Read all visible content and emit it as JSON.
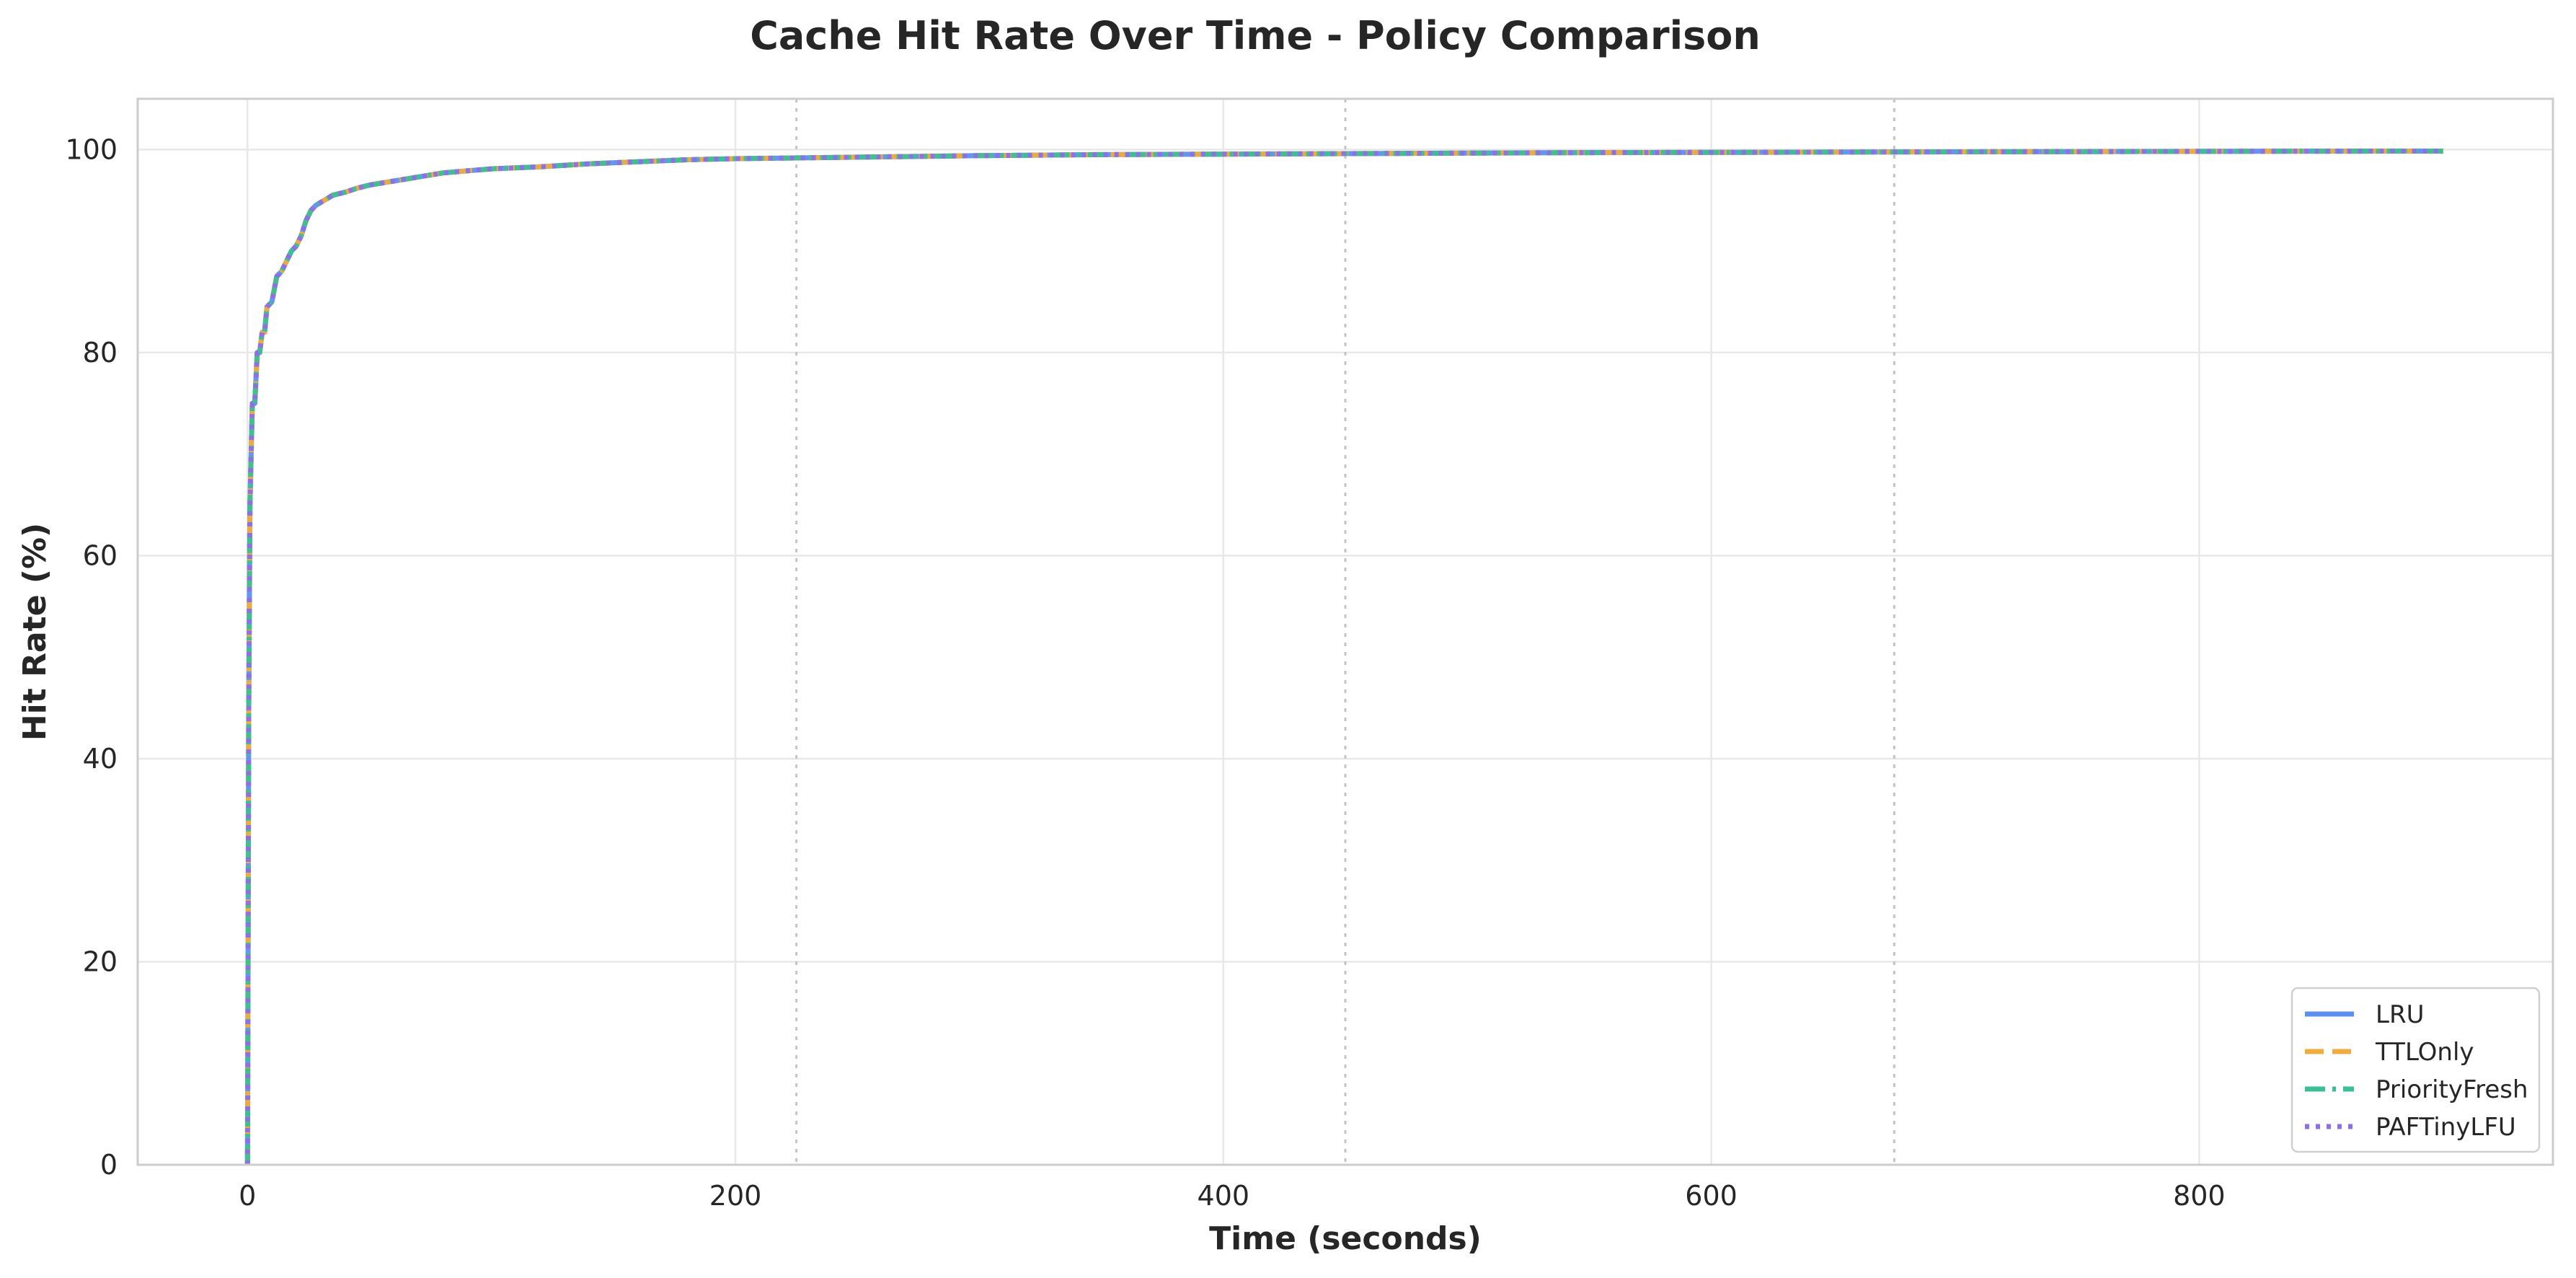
{
  "chart_data": {
    "type": "line",
    "title": "Cache Hit Rate Over Time - Policy Comparison",
    "xlabel": "Time (seconds)",
    "ylabel": "Hit Rate (%)",
    "xlim": [
      -45,
      945
    ],
    "ylim": [
      0,
      105
    ],
    "x_ticks": [
      0,
      200,
      400,
      600,
      800
    ],
    "y_ticks": [
      0,
      20,
      40,
      60,
      80,
      100
    ],
    "grid": true,
    "phase_markers_x": [
      225,
      450,
      675
    ],
    "legend_position": "lower right",
    "x": [
      0,
      0.5,
      1,
      2,
      3,
      4,
      5,
      6,
      7,
      8,
      10,
      12,
      14,
      16,
      18,
      20,
      22,
      24,
      26,
      28,
      30,
      35,
      40,
      45,
      50,
      60,
      70,
      80,
      90,
      100,
      120,
      140,
      160,
      180,
      200,
      250,
      300,
      350,
      400,
      450,
      500,
      550,
      600,
      650,
      700,
      750,
      800,
      850,
      900
    ],
    "series": [
      {
        "name": "LRU",
        "color": "#5B8FF0",
        "dash": "solid",
        "values": [
          0,
          45,
          65,
          75,
          75,
          80,
          80,
          82,
          82,
          84.5,
          85,
          87.5,
          88,
          89,
          90,
          90.5,
          91.5,
          93,
          94,
          94.5,
          94.8,
          95.5,
          95.8,
          96.2,
          96.5,
          96.9,
          97.3,
          97.7,
          97.9,
          98.1,
          98.3,
          98.6,
          98.8,
          99.0,
          99.1,
          99.25,
          99.4,
          99.5,
          99.55,
          99.6,
          99.65,
          99.7,
          99.72,
          99.75,
          99.78,
          99.8,
          99.82,
          99.84,
          99.85
        ]
      },
      {
        "name": "TTLOnly",
        "color": "#F0AC3C",
        "dash": "dashed",
        "values": [
          0,
          45,
          65,
          75,
          75,
          80,
          80,
          82,
          82,
          84.5,
          85,
          87.5,
          88,
          89,
          90,
          90.5,
          91.5,
          93,
          94,
          94.5,
          94.8,
          95.5,
          95.8,
          96.2,
          96.5,
          96.9,
          97.3,
          97.7,
          97.9,
          98.1,
          98.3,
          98.6,
          98.8,
          99.0,
          99.1,
          99.25,
          99.4,
          99.5,
          99.55,
          99.6,
          99.65,
          99.7,
          99.72,
          99.75,
          99.78,
          99.8,
          99.82,
          99.84,
          99.85
        ]
      },
      {
        "name": "PriorityFresh",
        "color": "#3CBF92",
        "dash": "dashdot",
        "values": [
          0,
          45,
          65,
          75,
          75,
          80,
          80,
          82,
          82,
          84.5,
          85,
          87.5,
          88,
          89,
          90,
          90.5,
          91.5,
          93,
          94,
          94.5,
          94.8,
          95.5,
          95.8,
          96.2,
          96.5,
          96.9,
          97.3,
          97.7,
          97.9,
          98.1,
          98.3,
          98.6,
          98.8,
          99.0,
          99.1,
          99.25,
          99.4,
          99.5,
          99.55,
          99.6,
          99.65,
          99.7,
          99.72,
          99.75,
          99.78,
          99.8,
          99.82,
          99.84,
          99.85
        ]
      },
      {
        "name": "PAFTinyLFU",
        "color": "#8E6EE8",
        "dash": "dotted",
        "values": [
          0,
          45,
          65,
          75,
          75,
          80,
          80,
          82,
          82,
          84.5,
          85,
          87.5,
          88,
          89,
          90,
          90.5,
          91.5,
          93,
          94,
          94.5,
          94.8,
          95.5,
          95.8,
          96.2,
          96.5,
          96.9,
          97.3,
          97.7,
          97.9,
          98.1,
          98.3,
          98.6,
          98.8,
          99.0,
          99.1,
          99.25,
          99.4,
          99.5,
          99.55,
          99.6,
          99.65,
          99.7,
          99.72,
          99.75,
          99.78,
          99.8,
          99.82,
          99.84,
          99.85
        ]
      }
    ]
  }
}
